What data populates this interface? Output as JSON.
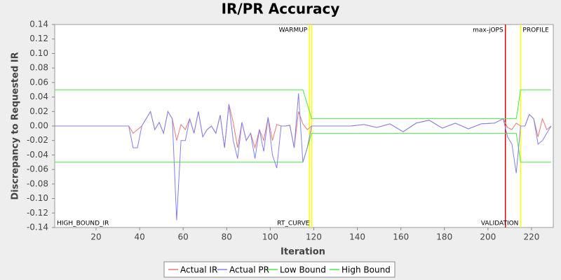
{
  "chart_data": {
    "type": "line",
    "title": "IR/PR Accuracy",
    "x_label": "Iteration",
    "y_label": "Discrepancy to Requested IR",
    "xlim": [
      1,
      230
    ],
    "ylim": [
      -0.14,
      0.14
    ],
    "xticks": [
      20,
      40,
      60,
      80,
      100,
      120,
      140,
      160,
      180,
      200,
      220
    ],
    "yticks": [
      0.14,
      0.12,
      {
        "value": 0.1,
        "label": "0.10"
      },
      0.08,
      0.06,
      0.04,
      0.02,
      {
        "value": 0,
        "label": "0.00"
      },
      -0.02,
      -0.04,
      -0.06,
      -0.08,
      {
        "value": -0.1,
        "label": "-0.10"
      },
      -0.12,
      -0.14
    ],
    "legend": "bottom",
    "x": [
      1,
      35,
      37,
      39,
      41,
      43,
      45,
      47,
      49,
      51,
      53,
      55,
      57,
      59,
      61,
      63,
      65,
      67,
      69,
      71,
      73,
      75,
      77,
      79,
      81,
      83,
      85,
      87,
      89,
      91,
      93,
      95,
      97,
      99,
      101,
      103,
      105,
      107,
      109,
      111,
      113,
      115,
      117,
      119,
      125,
      131,
      137,
      143,
      149,
      155,
      161,
      167,
      173,
      179,
      185,
      191,
      197,
      203,
      207,
      209,
      211,
      213,
      215,
      217,
      219,
      221,
      223,
      225,
      227,
      229
    ],
    "series": [
      {
        "name": "Actual IR",
        "color": "#e87878",
        "values": [
          0,
          0,
          -0.01,
          -0.005,
          0,
          0.01,
          0.02,
          -0.005,
          0.005,
          -0.01,
          0.02,
          0.01,
          -0.02,
          0.002,
          -0.005,
          0.01,
          -0.01,
          0.02,
          -0.015,
          -0.005,
          0,
          -0.01,
          0.015,
          -0.03,
          0.03,
          0.005,
          -0.03,
          0.005,
          -0.02,
          -0.01,
          -0.03,
          -0.005,
          -0.02,
          0.012,
          -0.02,
          0.002,
          0,
          0,
          0.001,
          -0.03,
          0.02,
          0.003,
          -0.005,
          0,
          0,
          0,
          0,
          0.002,
          -0.002,
          0.003,
          -0.008,
          0.004,
          0.008,
          -0.003,
          0.004,
          -0.004,
          0.003,
          0.004,
          0.01,
          -0.002,
          -0.005,
          0.004,
          0,
          0,
          0.016,
          0.01,
          -0.015,
          0.01,
          -0.005,
          0
        ]
      },
      {
        "name": "Actual PR",
        "color": "#8080f0",
        "values": [
          0,
          0,
          -0.03,
          -0.03,
          0,
          0.01,
          0.02,
          -0.005,
          0.005,
          -0.01,
          0.02,
          0.01,
          -0.13,
          -0.02,
          -0.02,
          0.01,
          -0.01,
          0.02,
          -0.015,
          -0.005,
          0,
          -0.01,
          0.015,
          -0.03,
          0.03,
          -0.02,
          -0.045,
          0.005,
          -0.02,
          -0.01,
          -0.045,
          -0.005,
          -0.035,
          0.012,
          -0.04,
          -0.058,
          0,
          0,
          0.001,
          -0.03,
          0.045,
          -0.05,
          -0.03,
          0,
          0,
          0,
          0,
          0.002,
          -0.002,
          0.003,
          -0.008,
          0.004,
          0.008,
          -0.003,
          0.004,
          -0.004,
          0.003,
          0.004,
          0.01,
          -0.015,
          -0.025,
          -0.065,
          0,
          0,
          0.016,
          0.01,
          -0.025,
          -0.02,
          -0.01,
          0
        ]
      },
      {
        "name": "Low Bound",
        "color": "#44ee44",
        "values": [
          -0.05,
          -0.05,
          -0.05,
          -0.05,
          -0.05,
          -0.05,
          -0.05,
          -0.05,
          -0.05,
          -0.05,
          -0.05,
          -0.05,
          -0.05,
          -0.05,
          -0.05,
          -0.05,
          -0.05,
          -0.05,
          -0.05,
          -0.05,
          -0.05,
          -0.05,
          -0.05,
          -0.05,
          -0.05,
          -0.05,
          -0.05,
          -0.05,
          -0.05,
          -0.05,
          -0.05,
          -0.05,
          -0.05,
          -0.05,
          -0.05,
          -0.05,
          -0.05,
          -0.05,
          -0.05,
          -0.05,
          -0.05,
          -0.05,
          -0.03,
          -0.01,
          -0.01,
          -0.01,
          -0.01,
          -0.01,
          -0.01,
          -0.01,
          -0.01,
          -0.01,
          -0.01,
          -0.01,
          -0.01,
          -0.01,
          -0.01,
          -0.01,
          -0.01,
          -0.01,
          -0.01,
          -0.01,
          -0.05,
          -0.05,
          -0.05,
          -0.05,
          -0.05,
          -0.05,
          -0.05,
          -0.05
        ]
      },
      {
        "name": "High Bound",
        "color": "#44ee44",
        "values": [
          0.05,
          0.05,
          0.05,
          0.05,
          0.05,
          0.05,
          0.05,
          0.05,
          0.05,
          0.05,
          0.05,
          0.05,
          0.05,
          0.05,
          0.05,
          0.05,
          0.05,
          0.05,
          0.05,
          0.05,
          0.05,
          0.05,
          0.05,
          0.05,
          0.05,
          0.05,
          0.05,
          0.05,
          0.05,
          0.05,
          0.05,
          0.05,
          0.05,
          0.05,
          0.05,
          0.05,
          0.05,
          0.05,
          0.05,
          0.05,
          0.05,
          0.05,
          0.03,
          0.01,
          0.01,
          0.01,
          0.01,
          0.01,
          0.01,
          0.01,
          0.01,
          0.01,
          0.01,
          0.01,
          0.01,
          0.01,
          0.01,
          0.01,
          0.01,
          0.01,
          0.01,
          0.01,
          0.05,
          0.05,
          0.05,
          0.05,
          0.05,
          0.05,
          0.05,
          0.05
        ]
      }
    ],
    "markers": [
      {
        "x": 118,
        "color": "#ffff00"
      },
      {
        "x": 119,
        "color": "#ffff00"
      },
      {
        "x": 208,
        "color": "#dd0000"
      },
      {
        "x": 215,
        "color": "#ffff00"
      }
    ],
    "annotations": [
      {
        "x": 118,
        "text": "WARMUP",
        "position": "top",
        "anchor": "end"
      },
      {
        "x": 208,
        "text": "max-jOPS",
        "position": "top",
        "anchor": "end"
      },
      {
        "x": 215,
        "text": "PROFILE",
        "position": "top",
        "anchor": "start"
      },
      {
        "x": 1,
        "text": "HIGH_BOUND_IR",
        "position": "bottom",
        "anchor": "start"
      },
      {
        "x": 119,
        "text": "RT_CURVE",
        "position": "bottom",
        "anchor": "end"
      },
      {
        "x": 215,
        "text": "VALIDATION",
        "position": "bottom",
        "anchor": "end"
      }
    ]
  }
}
